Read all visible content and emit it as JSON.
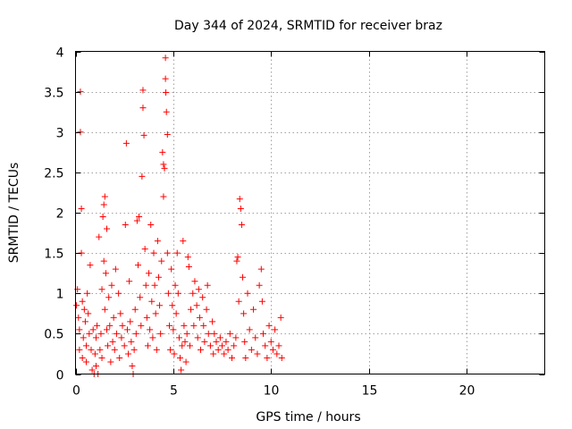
{
  "chart_data": {
    "type": "scatter",
    "title": "Day 344 of 2024, SRMTID for receiver braz",
    "xlabel": "GPS time / hours",
    "ylabel": "SRMTID / TECUs",
    "xlim": [
      0,
      24
    ],
    "ylim": [
      0,
      4
    ],
    "xticks": [
      0,
      5,
      10,
      15,
      20
    ],
    "xtick_labels": [
      "0",
      "5",
      "10",
      "15",
      "20"
    ],
    "yticks": [
      0,
      0.5,
      1,
      1.5,
      2,
      2.5,
      3,
      3.5,
      4
    ],
    "ytick_labels": [
      "0",
      "0.5",
      "1",
      "1.5",
      "2",
      "2.5",
      "3",
      "3.5",
      "4"
    ],
    "grid": true,
    "marker": "+",
    "series": [
      {
        "name": "SRMTID",
        "color": "#ff0000",
        "points": [
          [
            0.05,
            0.85
          ],
          [
            0.1,
            1.05
          ],
          [
            0.15,
            0.7
          ],
          [
            0.2,
            0.55
          ],
          [
            0.2,
            0.3
          ],
          [
            0.25,
            3.5
          ],
          [
            0.25,
            3.0
          ],
          [
            0.3,
            2.05
          ],
          [
            0.3,
            1.5
          ],
          [
            0.35,
            0.9
          ],
          [
            0.35,
            0.2
          ],
          [
            0.4,
            0.45
          ],
          [
            0.45,
            0.8
          ],
          [
            0.5,
            0.65
          ],
          [
            0.55,
            0.35
          ],
          [
            0.55,
            0.15
          ],
          [
            0.6,
            1.0
          ],
          [
            0.65,
            0.75
          ],
          [
            0.7,
            0.5
          ],
          [
            0.75,
            1.35
          ],
          [
            0.8,
            0.3
          ],
          [
            0.85,
            0.05
          ],
          [
            0.9,
            0.55
          ],
          [
            0.95,
            0.0
          ],
          [
            1.0,
            0.25
          ],
          [
            1.05,
            0.45
          ],
          [
            1.05,
            0.1
          ],
          [
            1.1,
            0.6
          ],
          [
            1.15,
            0.0
          ],
          [
            1.2,
            1.7
          ],
          [
            1.25,
            0.3
          ],
          [
            1.3,
            0.5
          ],
          [
            1.35,
            1.05
          ],
          [
            1.35,
            0.2
          ],
          [
            1.4,
            1.95
          ],
          [
            1.45,
            2.1
          ],
          [
            1.45,
            1.4
          ],
          [
            1.5,
            2.2
          ],
          [
            1.5,
            0.8
          ],
          [
            1.55,
            1.25
          ],
          [
            1.6,
            1.8
          ],
          [
            1.6,
            0.55
          ],
          [
            1.65,
            0.35
          ],
          [
            1.7,
            0.95
          ],
          [
            1.75,
            0.6
          ],
          [
            1.8,
            0.15
          ],
          [
            1.85,
            1.1
          ],
          [
            1.9,
            0.4
          ],
          [
            1.95,
            0.7
          ],
          [
            2.0,
            0.3
          ],
          [
            2.05,
            1.3
          ],
          [
            2.1,
            0.5
          ],
          [
            2.2,
            1.0
          ],
          [
            2.25,
            0.2
          ],
          [
            2.3,
            0.75
          ],
          [
            2.35,
            0.45
          ],
          [
            2.4,
            0.6
          ],
          [
            2.5,
            0.35
          ],
          [
            2.55,
            1.85
          ],
          [
            2.6,
            2.86
          ],
          [
            2.65,
            0.55
          ],
          [
            2.7,
            0.25
          ],
          [
            2.75,
            1.15
          ],
          [
            2.8,
            0.65
          ],
          [
            2.85,
            0.4
          ],
          [
            2.9,
            0.1
          ],
          [
            2.95,
            0.0
          ],
          [
            3.0,
            0.3
          ],
          [
            3.05,
            0.8
          ],
          [
            3.1,
            0.5
          ],
          [
            3.15,
            1.9
          ],
          [
            3.2,
            1.35
          ],
          [
            3.25,
            1.95
          ],
          [
            3.3,
            0.95
          ],
          [
            3.35,
            0.6
          ],
          [
            3.4,
            2.45
          ],
          [
            3.45,
            3.52
          ],
          [
            3.45,
            3.3
          ],
          [
            3.5,
            2.96
          ],
          [
            3.55,
            1.55
          ],
          [
            3.6,
            1.1
          ],
          [
            3.65,
            0.7
          ],
          [
            3.7,
            0.35
          ],
          [
            3.75,
            1.25
          ],
          [
            3.8,
            0.55
          ],
          [
            3.85,
            1.85
          ],
          [
            3.9,
            0.9
          ],
          [
            3.95,
            0.45
          ],
          [
            4.0,
            1.5
          ],
          [
            4.05,
            1.1
          ],
          [
            4.1,
            0.75
          ],
          [
            4.15,
            0.3
          ],
          [
            4.2,
            1.65
          ],
          [
            4.25,
            1.2
          ],
          [
            4.3,
            0.85
          ],
          [
            4.35,
            0.5
          ],
          [
            4.4,
            1.4
          ],
          [
            4.45,
            2.75
          ],
          [
            4.5,
            2.6
          ],
          [
            4.5,
            2.2
          ],
          [
            4.55,
            2.55
          ],
          [
            4.6,
            3.92
          ],
          [
            4.6,
            3.66
          ],
          [
            4.62,
            3.49
          ],
          [
            4.65,
            3.25
          ],
          [
            4.7,
            2.97
          ],
          [
            4.7,
            1.5
          ],
          [
            4.75,
            1.0
          ],
          [
            4.8,
            0.6
          ],
          [
            4.85,
            0.3
          ],
          [
            4.9,
            1.3
          ],
          [
            4.95,
            0.85
          ],
          [
            5.0,
            0.55
          ],
          [
            5.05,
            0.25
          ],
          [
            5.1,
            1.1
          ],
          [
            5.15,
            0.75
          ],
          [
            5.2,
            1.5
          ],
          [
            5.25,
            1.0
          ],
          [
            5.3,
            0.45
          ],
          [
            5.35,
            0.2
          ],
          [
            5.4,
            0.05
          ],
          [
            5.45,
            0.35
          ],
          [
            5.5,
            1.65
          ],
          [
            5.55,
            0.6
          ],
          [
            5.6,
            0.4
          ],
          [
            5.65,
            0.15
          ],
          [
            5.7,
            0.5
          ],
          [
            5.75,
            1.45
          ],
          [
            5.8,
            1.33
          ],
          [
            5.85,
            0.35
          ],
          [
            5.9,
            0.8
          ],
          [
            6.0,
            1.0
          ],
          [
            6.05,
            0.6
          ],
          [
            6.1,
            1.15
          ],
          [
            6.2,
            0.85
          ],
          [
            6.25,
            0.45
          ],
          [
            6.3,
            1.05
          ],
          [
            6.35,
            0.7
          ],
          [
            6.4,
            0.3
          ],
          [
            6.5,
            0.95
          ],
          [
            6.55,
            0.6
          ],
          [
            6.6,
            0.4
          ],
          [
            6.7,
            0.8
          ],
          [
            6.75,
            1.1
          ],
          [
            6.8,
            0.5
          ],
          [
            6.9,
            0.35
          ],
          [
            7.0,
            0.65
          ],
          [
            7.05,
            0.25
          ],
          [
            7.1,
            0.5
          ],
          [
            7.2,
            0.4
          ],
          [
            7.3,
            0.3
          ],
          [
            7.4,
            0.45
          ],
          [
            7.5,
            0.35
          ],
          [
            7.6,
            0.25
          ],
          [
            7.7,
            0.4
          ],
          [
            7.8,
            0.3
          ],
          [
            7.9,
            0.5
          ],
          [
            8.0,
            0.2
          ],
          [
            8.1,
            0.35
          ],
          [
            8.2,
            0.45
          ],
          [
            8.25,
            1.4
          ],
          [
            8.3,
            1.45
          ],
          [
            8.35,
            0.9
          ],
          [
            8.4,
            2.17
          ],
          [
            8.45,
            2.05
          ],
          [
            8.5,
            1.85
          ],
          [
            8.55,
            1.2
          ],
          [
            8.6,
            0.75
          ],
          [
            8.65,
            0.4
          ],
          [
            8.7,
            0.2
          ],
          [
            8.8,
            1.0
          ],
          [
            8.9,
            0.55
          ],
          [
            9.0,
            0.3
          ],
          [
            9.1,
            0.8
          ],
          [
            9.2,
            0.45
          ],
          [
            9.3,
            0.25
          ],
          [
            9.4,
            1.1
          ],
          [
            9.5,
            1.3
          ],
          [
            9.55,
            0.9
          ],
          [
            9.6,
            0.5
          ],
          [
            9.7,
            0.35
          ],
          [
            9.8,
            0.2
          ],
          [
            9.9,
            0.6
          ],
          [
            10.0,
            0.4
          ],
          [
            10.1,
            0.3
          ],
          [
            10.2,
            0.55
          ],
          [
            10.3,
            0.25
          ],
          [
            10.4,
            0.35
          ],
          [
            10.5,
            0.7
          ],
          [
            10.55,
            0.2
          ]
        ]
      }
    ]
  }
}
